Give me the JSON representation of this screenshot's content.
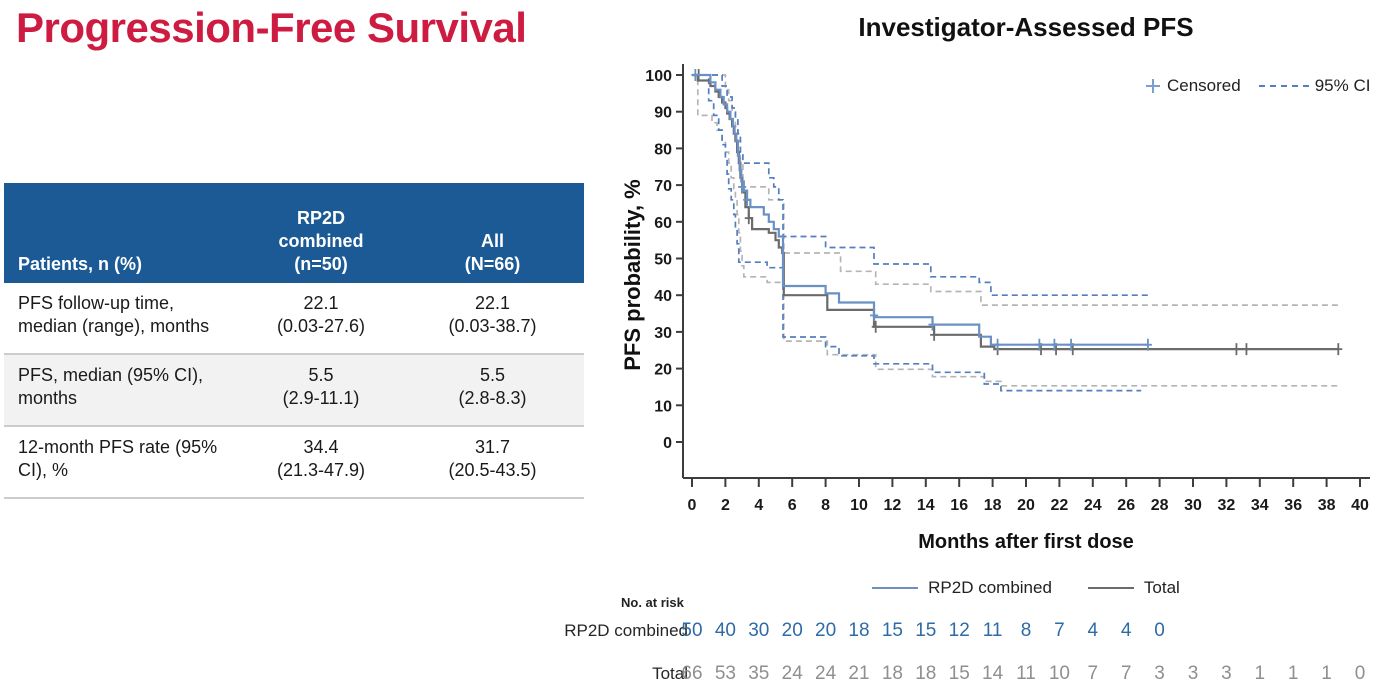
{
  "slide": {
    "title": "Progression-Free Survival",
    "title_color": "#ce1b41"
  },
  "table": {
    "header": {
      "col1": "Patients, n (%)",
      "col2": "RP2D\ncombined\n(n=50)",
      "col3": "All\n(N=66)"
    },
    "rows": [
      {
        "label": "PFS follow-up time,\nmedian (range), months",
        "rp2d": "22.1\n(0.03-27.6)",
        "all": "22.1\n(0.03-38.7)"
      },
      {
        "label": "PFS, median (95% CI),\nmonths",
        "rp2d": "5.5\n(2.9-11.1)",
        "all": "5.5\n(2.8-8.3)"
      },
      {
        "label": "12-month PFS rate (95%\nCI), %",
        "rp2d": "34.4\n(21.3-47.9)",
        "all": "31.7\n(20.5-43.5)"
      }
    ],
    "colors": {
      "header_bg": "#1c5a96",
      "alt_row_bg": "#f2f2f2",
      "divider": "#cccccc"
    }
  },
  "chart_data": {
    "type": "line",
    "subtype": "kaplan-meier-step",
    "title": "Investigator-Assessed PFS",
    "xlabel": "Months after first dose",
    "ylabel": "PFS probability, %",
    "xlim": [
      0,
      40
    ],
    "xtick_step": 2,
    "ylim": [
      0,
      100
    ],
    "ytick_step": 10,
    "grid": false,
    "legend_top": {
      "censored_label": "Censored",
      "ci_label": "95% CI"
    },
    "legend_series_labels": [
      "RP2D combined",
      "Total"
    ],
    "colors": {
      "rp2d": "#6b91c4",
      "rp2d_ci": "#537fc0",
      "total": "#6b6b6b",
      "total_ci": "#b5b5b5",
      "axis": "#3d3d3d",
      "risk_rp2d": "#2e6ba6",
      "risk_total": "#8f8f8f"
    },
    "series": [
      {
        "name": "Total 95% CI upper",
        "color": "#b5b5b5",
        "dash": true,
        "points": [
          [
            0,
            100
          ],
          [
            2.0,
            96
          ],
          [
            2.2,
            93
          ],
          [
            2.4,
            90
          ],
          [
            2.6,
            86
          ],
          [
            2.75,
            82
          ],
          [
            2.9,
            76
          ],
          [
            3.05,
            69.5
          ],
          [
            4.6,
            66
          ],
          [
            5.5,
            51.5
          ],
          [
            8.9,
            46.5
          ],
          [
            11.0,
            43
          ],
          [
            14.3,
            41
          ],
          [
            17.3,
            37.3
          ],
          [
            38.7,
            37.3
          ]
        ]
      },
      {
        "name": "Total 95% CI lower",
        "color": "#b5b5b5",
        "dash": true,
        "points": [
          [
            0,
            100
          ],
          [
            0.35,
            89
          ],
          [
            1.2,
            87
          ],
          [
            1.5,
            85
          ],
          [
            1.8,
            82
          ],
          [
            2.0,
            79
          ],
          [
            2.2,
            76
          ],
          [
            2.35,
            72
          ],
          [
            2.5,
            69
          ],
          [
            2.6,
            66
          ],
          [
            2.7,
            62
          ],
          [
            2.8,
            57
          ],
          [
            2.9,
            52
          ],
          [
            3.0,
            48
          ],
          [
            3.1,
            45
          ],
          [
            4.5,
            43.5
          ],
          [
            5.5,
            27.5
          ],
          [
            8.1,
            23.8
          ],
          [
            11.0,
            19.8
          ],
          [
            14.4,
            17.8
          ],
          [
            17.5,
            16.5
          ],
          [
            18.5,
            15.3
          ],
          [
            38.7,
            15.3
          ]
        ]
      },
      {
        "name": "RP2D combined 95% CI upper",
        "color": "#537fc0",
        "dash": true,
        "points": [
          [
            0,
            100
          ],
          [
            1.8,
            97
          ],
          [
            2.1,
            94
          ],
          [
            2.4,
            91
          ],
          [
            2.6,
            88
          ],
          [
            2.75,
            84
          ],
          [
            2.9,
            79
          ],
          [
            3.05,
            76
          ],
          [
            4.6,
            72
          ],
          [
            4.9,
            69.5
          ],
          [
            5.2,
            66
          ],
          [
            5.45,
            56
          ],
          [
            8.0,
            53
          ],
          [
            10.9,
            48.5
          ],
          [
            14.3,
            45
          ],
          [
            17.2,
            43.5
          ],
          [
            17.9,
            40
          ],
          [
            27.3,
            40
          ]
        ]
      },
      {
        "name": "RP2D combined 95% CI lower",
        "color": "#537fc0",
        "dash": true,
        "points": [
          [
            0,
            100
          ],
          [
            1.0,
            93
          ],
          [
            1.3,
            89
          ],
          [
            1.6,
            85
          ],
          [
            1.8,
            81
          ],
          [
            2.0,
            77
          ],
          [
            2.1,
            73
          ],
          [
            2.2,
            69
          ],
          [
            2.35,
            66
          ],
          [
            2.5,
            62
          ],
          [
            2.6,
            58
          ],
          [
            2.7,
            54
          ],
          [
            2.8,
            49
          ],
          [
            4.5,
            47.5
          ],
          [
            5.45,
            28.6
          ],
          [
            8.0,
            26
          ],
          [
            8.8,
            23.5
          ],
          [
            10.9,
            21.3
          ],
          [
            14.4,
            19
          ],
          [
            17.5,
            15.8
          ],
          [
            18.5,
            14
          ],
          [
            26.9,
            14
          ]
        ]
      },
      {
        "name": "Total",
        "color": "#6b6b6b",
        "dash": false,
        "points": [
          [
            0,
            100
          ],
          [
            0.35,
            98.5
          ],
          [
            1.1,
            97
          ],
          [
            1.4,
            95.5
          ],
          [
            1.6,
            94
          ],
          [
            1.8,
            92.5
          ],
          [
            2.0,
            91
          ],
          [
            2.1,
            89.5
          ],
          [
            2.25,
            88
          ],
          [
            2.4,
            86
          ],
          [
            2.5,
            84
          ],
          [
            2.6,
            82
          ],
          [
            2.7,
            79
          ],
          [
            2.8,
            76
          ],
          [
            2.9,
            72
          ],
          [
            3.0,
            68
          ],
          [
            3.2,
            64
          ],
          [
            3.4,
            61
          ],
          [
            3.6,
            58
          ],
          [
            4.6,
            57
          ],
          [
            5.0,
            55
          ],
          [
            5.2,
            53
          ],
          [
            5.4,
            51.5
          ],
          [
            5.5,
            40
          ],
          [
            8.1,
            36
          ],
          [
            10.9,
            31.4
          ],
          [
            14.5,
            29.2
          ],
          [
            17.3,
            26
          ],
          [
            18.1,
            25.3
          ],
          [
            38.7,
            25.3
          ]
        ],
        "censors": [
          [
            0.4,
            100
          ],
          [
            3.4,
            61
          ],
          [
            11.0,
            31.4
          ],
          [
            14.5,
            29.2
          ],
          [
            18.3,
            25.3
          ],
          [
            20.9,
            25.3
          ],
          [
            21.8,
            25.3
          ],
          [
            22.8,
            25.3
          ],
          [
            32.6,
            25.3
          ],
          [
            33.2,
            25.3
          ],
          [
            38.7,
            25.3
          ]
        ]
      },
      {
        "name": "RP2D combined",
        "color": "#6b91c4",
        "dash": false,
        "points": [
          [
            0,
            100
          ],
          [
            1.1,
            98
          ],
          [
            1.4,
            96
          ],
          [
            1.7,
            94
          ],
          [
            1.9,
            92
          ],
          [
            2.1,
            90
          ],
          [
            2.3,
            88
          ],
          [
            2.45,
            86
          ],
          [
            2.55,
            84
          ],
          [
            2.65,
            82
          ],
          [
            2.75,
            78
          ],
          [
            2.85,
            74
          ],
          [
            2.95,
            71
          ],
          [
            3.1,
            68.5
          ],
          [
            3.3,
            66
          ],
          [
            3.5,
            64
          ],
          [
            4.3,
            62
          ],
          [
            4.6,
            60
          ],
          [
            4.9,
            58
          ],
          [
            5.2,
            56
          ],
          [
            5.45,
            42.5
          ],
          [
            8.0,
            40.5
          ],
          [
            8.8,
            38
          ],
          [
            10.9,
            34
          ],
          [
            14.4,
            32
          ],
          [
            17.2,
            28.7
          ],
          [
            17.9,
            26.5
          ],
          [
            27.3,
            26.5
          ]
        ],
        "censors": [
          [
            0.2,
            100
          ],
          [
            3.0,
            69.5
          ],
          [
            3.3,
            66
          ],
          [
            10.9,
            34.5
          ],
          [
            14.4,
            32
          ],
          [
            18.3,
            26.5
          ],
          [
            20.8,
            26.5
          ],
          [
            21.7,
            26.5
          ],
          [
            22.7,
            26.5
          ],
          [
            27.3,
            26.5
          ]
        ]
      }
    ],
    "risk_table": {
      "title": "No. at risk",
      "months": [
        0,
        2,
        4,
        6,
        8,
        10,
        12,
        14,
        16,
        18,
        20,
        22,
        24,
        26,
        28,
        30,
        32,
        34,
        36,
        38,
        40
      ],
      "rows": [
        {
          "label": "RP2D combined",
          "values": [
            50,
            40,
            30,
            20,
            20,
            18,
            15,
            15,
            12,
            11,
            8,
            7,
            4,
            4,
            0
          ]
        },
        {
          "label": "Total",
          "values": [
            66,
            53,
            35,
            24,
            24,
            21,
            18,
            18,
            15,
            14,
            11,
            10,
            7,
            7,
            3,
            3,
            3,
            1,
            1,
            1,
            0
          ]
        }
      ]
    }
  }
}
